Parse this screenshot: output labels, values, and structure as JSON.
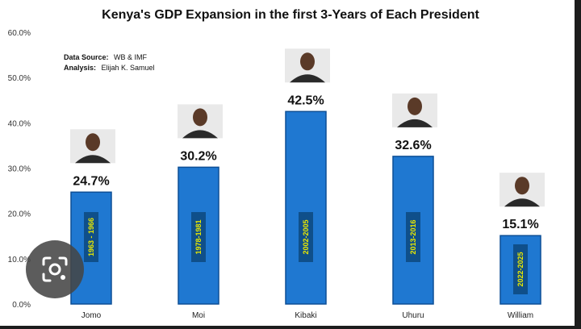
{
  "chart_data": {
    "type": "bar",
    "title": "Kenya's GDP Expansion in the first 3-Years of Each President",
    "categories": [
      "Jomo",
      "Moi",
      "Kibaki",
      "Uhuru",
      "William"
    ],
    "values": [
      24.7,
      30.2,
      42.5,
      32.6,
      15.1
    ],
    "value_labels": [
      "24.7%",
      "30.2%",
      "42.5%",
      "32.6%",
      "15.1%"
    ],
    "periods": [
      "1963 - 1966",
      "1978-1981",
      "2002-2005",
      "2013-2016",
      "2022-2025"
    ],
    "yticks": [
      "0.0%",
      "10.0%",
      "20.0%",
      "30.0%",
      "40.0%",
      "50.0%",
      "60.0%"
    ],
    "ylim": [
      0,
      60
    ],
    "xlabel": "",
    "ylabel": "",
    "grid": false,
    "annotations": {
      "source_label": "Data Source:",
      "source_value": "WB & IMF",
      "analysis_label": "Analysis:",
      "analysis_value": "Elijah K. Samuel"
    },
    "colors": {
      "bar": "#1f78d1",
      "bar_edge": "#0d4f96",
      "period_box": "#0f4f8a",
      "period_text": "#e8e800"
    }
  }
}
